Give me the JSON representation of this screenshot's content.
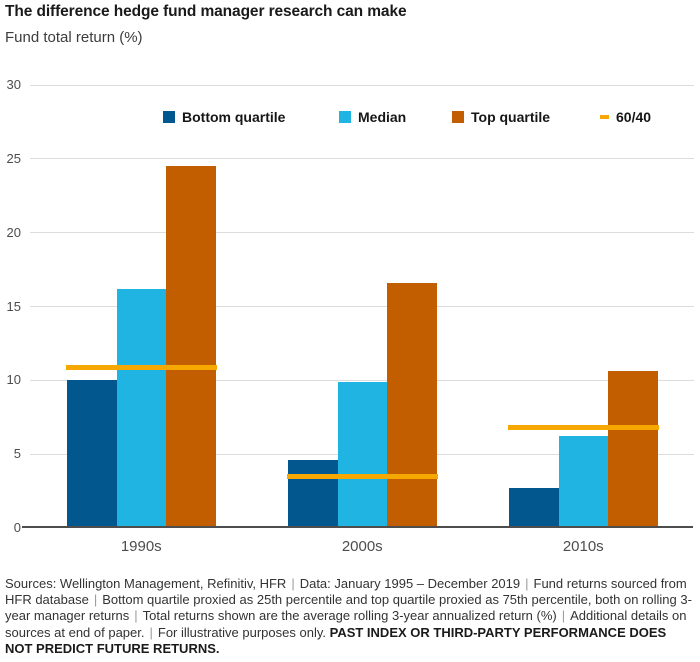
{
  "header": {
    "title": "The difference hedge fund manager research can make",
    "subtitle": "Fund total return (%)"
  },
  "chart_data": {
    "type": "bar",
    "title": "The difference hedge fund manager research can make",
    "ylabel": "Fund total return (%)",
    "categories": [
      "1990s",
      "2000s",
      "2010s"
    ],
    "series": [
      {
        "name": "Bottom quartile",
        "color": "#02578F",
        "values": [
          10.0,
          4.6,
          2.7
        ]
      },
      {
        "name": "Median",
        "color": "#20B4E3",
        "values": [
          16.2,
          9.9,
          6.2
        ]
      },
      {
        "name": "Top quartile",
        "color": "#C25E00",
        "values": [
          24.5,
          16.6,
          10.6
        ]
      }
    ],
    "line_series": {
      "name": "60/40",
      "color": "#F7A800",
      "values": [
        10.9,
        3.5,
        6.8
      ]
    },
    "ylim": [
      0,
      30
    ],
    "yticks": [
      0,
      5,
      10,
      15,
      20,
      25,
      30
    ],
    "grid": true,
    "grid_color": "#dcdcdc",
    "axis_color": "#4d4d4d",
    "legend_position": "top"
  },
  "footnote": {
    "segments": [
      "Sources: Wellington Management, Refinitiv, HFR",
      "Data: January 1995 – December 2019",
      "Fund returns sourced from HFR database",
      "Bottom quartile proxied as 25th percentile and top quartile proxied as 75th percentile, both on rolling 3-year manager returns",
      "Total returns shown are the average rolling 3-year annualized return (%)",
      "Additional details on sources at end of paper.",
      "For illustrative purposes only."
    ],
    "disclaimer": "PAST INDEX OR THIRD-PARTY PERFORMANCE DOES NOT PREDICT FUTURE RETURNS."
  }
}
